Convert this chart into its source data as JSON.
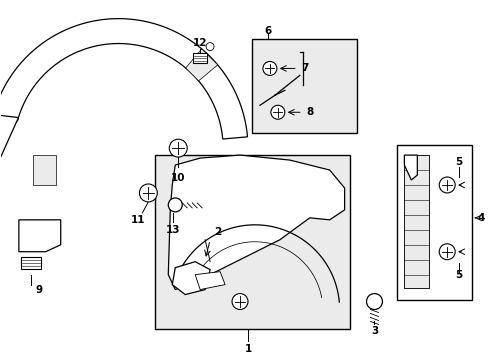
{
  "bg_color": "#ffffff",
  "line_color": "#000000",
  "gray_fill": "#e0e0e0",
  "light_gray": "#ebebeb",
  "figsize": [
    4.89,
    3.6
  ],
  "dpi": 100
}
